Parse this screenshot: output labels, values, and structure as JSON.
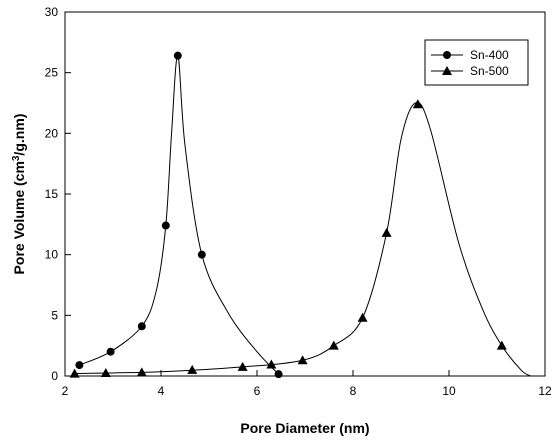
{
  "chart_data": {
    "type": "line",
    "xlabel": "Pore Diameter (nm)",
    "ylabel_parts": {
      "before": "Pore Volume (cm",
      "sup": "3",
      "after": "/g.nm)"
    },
    "xlim": [
      2,
      12
    ],
    "ylim": [
      0,
      30
    ],
    "xticks": [
      2,
      4,
      6,
      8,
      10,
      12
    ],
    "yticks": [
      0,
      5,
      10,
      15,
      20,
      25,
      30
    ],
    "grid": false,
    "legend_position": "top-right",
    "series": [
      {
        "name": "Sn-400",
        "marker": "circle",
        "color": "#000000",
        "markers": [
          {
            "x": 2.3,
            "y": 0.9
          },
          {
            "x": 2.95,
            "y": 2.0
          },
          {
            "x": 3.6,
            "y": 4.1
          },
          {
            "x": 4.1,
            "y": 12.4
          },
          {
            "x": 4.35,
            "y": 26.4
          },
          {
            "x": 4.85,
            "y": 10.0
          },
          {
            "x": 6.45,
            "y": 0.15
          }
        ],
        "curve": [
          {
            "x": 2.3,
            "y": 0.9
          },
          {
            "x": 2.95,
            "y": 2.0
          },
          {
            "x": 3.6,
            "y": 4.1
          },
          {
            "x": 3.9,
            "y": 7.0
          },
          {
            "x": 4.1,
            "y": 12.4
          },
          {
            "x": 4.22,
            "y": 20.0
          },
          {
            "x": 4.35,
            "y": 26.4
          },
          {
            "x": 4.5,
            "y": 19.0
          },
          {
            "x": 4.85,
            "y": 10.0
          },
          {
            "x": 5.4,
            "y": 5.2
          },
          {
            "x": 6.0,
            "y": 2.0
          },
          {
            "x": 6.45,
            "y": 0.15
          }
        ]
      },
      {
        "name": "Sn-500",
        "marker": "triangle",
        "color": "#000000",
        "markers": [
          {
            "x": 2.2,
            "y": 0.2
          },
          {
            "x": 2.85,
            "y": 0.25
          },
          {
            "x": 3.6,
            "y": 0.3
          },
          {
            "x": 4.65,
            "y": 0.5
          },
          {
            "x": 5.7,
            "y": 0.75
          },
          {
            "x": 6.3,
            "y": 0.95
          },
          {
            "x": 6.95,
            "y": 1.3
          },
          {
            "x": 7.6,
            "y": 2.5
          },
          {
            "x": 8.2,
            "y": 4.8
          },
          {
            "x": 8.7,
            "y": 11.8
          },
          {
            "x": 9.35,
            "y": 22.4
          },
          {
            "x": 11.1,
            "y": 2.5
          }
        ],
        "curve": [
          {
            "x": 2.2,
            "y": 0.2
          },
          {
            "x": 4.0,
            "y": 0.35
          },
          {
            "x": 5.7,
            "y": 0.75
          },
          {
            "x": 6.95,
            "y": 1.3
          },
          {
            "x": 7.6,
            "y": 2.5
          },
          {
            "x": 8.2,
            "y": 4.8
          },
          {
            "x": 8.7,
            "y": 11.8
          },
          {
            "x": 9.0,
            "y": 19.5
          },
          {
            "x": 9.3,
            "y": 22.5
          },
          {
            "x": 9.6,
            "y": 20.5
          },
          {
            "x": 10.2,
            "y": 11.0
          },
          {
            "x": 10.7,
            "y": 5.5
          },
          {
            "x": 11.1,
            "y": 2.5
          },
          {
            "x": 11.5,
            "y": 0.5
          },
          {
            "x": 11.7,
            "y": 0.0
          }
        ]
      }
    ]
  }
}
